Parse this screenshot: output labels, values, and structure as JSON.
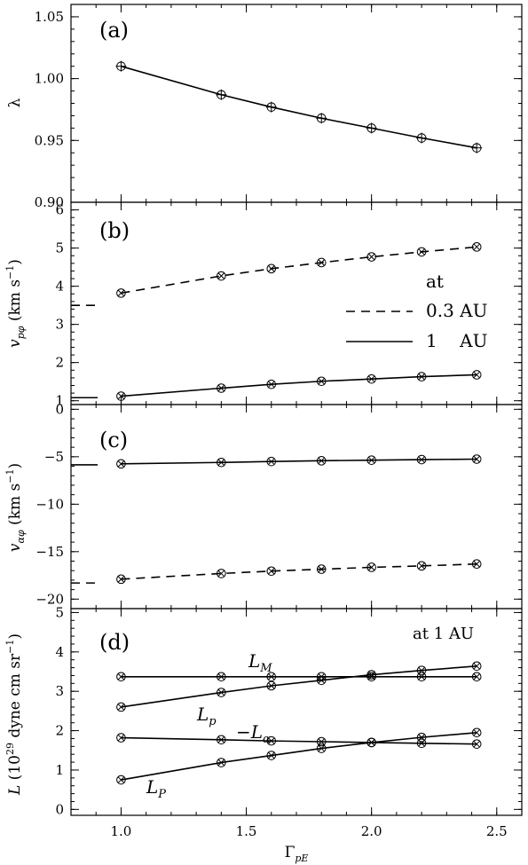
{
  "x_axis": {
    "label_main": "Γ",
    "label_sub": "pE",
    "ticks": [
      1.0,
      1.5,
      2.0,
      2.5
    ],
    "tick_labels": [
      "1.0",
      "1.5",
      "2.0",
      "2.5"
    ],
    "range": [
      0.8,
      2.6
    ]
  },
  "chart_data": [
    {
      "type": "line",
      "panel_label": "(a)",
      "ylabel": "λ",
      "ylim": [
        0.9,
        1.06
      ],
      "yticks": [
        0.9,
        0.95,
        1.0,
        1.05
      ],
      "ytick_labels": [
        "0.90",
        "0.95",
        "1.00",
        "1.05"
      ],
      "x": [
        1.0,
        1.4,
        1.6,
        1.8,
        2.0,
        2.2,
        2.42
      ],
      "series": [
        {
          "y": [
            1.01,
            0.987,
            0.977,
            0.968,
            0.96,
            0.952,
            0.944
          ],
          "dash": false,
          "marker": "circle-plus"
        }
      ]
    },
    {
      "type": "line",
      "panel_label": "(b)",
      "ylabel": "v_pφ (km s⁻¹)",
      "ylim": [
        0.9,
        6.2
      ],
      "yticks": [
        1,
        2,
        3,
        4,
        5,
        6
      ],
      "ytick_labels": [
        "1",
        "2",
        "3",
        "4",
        "5",
        "6"
      ],
      "x": [
        1.0,
        1.4,
        1.6,
        1.8,
        2.0,
        2.2,
        2.42
      ],
      "series": [
        {
          "name": "0.3 AU",
          "y": [
            3.82,
            4.27,
            4.46,
            4.62,
            4.77,
            4.9,
            5.03
          ],
          "dash": true,
          "marker": "circle-x",
          "ref_value": 3.5
        },
        {
          "name": "1 AU",
          "y": [
            1.12,
            1.33,
            1.43,
            1.51,
            1.57,
            1.63,
            1.68
          ],
          "dash": false,
          "marker": "circle-x",
          "ref_value": 1.08
        }
      ],
      "legend": {
        "title": "at",
        "entries": [
          "0.3 AU",
          "1    AU"
        ]
      }
    },
    {
      "type": "line",
      "panel_label": "(c)",
      "ylabel": "v_αφ (km s⁻¹)",
      "ylim": [
        -21,
        0.5
      ],
      "yticks": [
        0,
        -5,
        -10,
        -15,
        -20
      ],
      "ytick_labels": [
        "0",
        "−5",
        "−10",
        "−15",
        "−20"
      ],
      "x": [
        1.0,
        1.4,
        1.6,
        1.8,
        2.0,
        2.2,
        2.42
      ],
      "series": [
        {
          "y": [
            -5.75,
            -5.6,
            -5.5,
            -5.42,
            -5.36,
            -5.3,
            -5.25
          ],
          "dash": false,
          "marker": "circle-x",
          "ref_value": -5.85
        },
        {
          "y": [
            -17.9,
            -17.3,
            -17.05,
            -16.85,
            -16.65,
            -16.5,
            -16.3
          ],
          "dash": true,
          "marker": "circle-x",
          "ref_value": -18.3
        }
      ]
    },
    {
      "type": "line",
      "panel_label": "(d)",
      "ylabel": "L (10²⁹ dyne cm sr⁻¹)",
      "ylim": [
        -0.15,
        5.1
      ],
      "yticks": [
        0,
        1,
        2,
        3,
        4,
        5
      ],
      "ytick_labels": [
        "0",
        "1",
        "2",
        "3",
        "4",
        "5"
      ],
      "x": [
        1.0,
        1.4,
        1.6,
        1.8,
        2.0,
        2.2,
        2.42
      ],
      "annotation": "at 1 AU",
      "series": [
        {
          "name": "L_M",
          "y": [
            3.37,
            3.37,
            3.37,
            3.37,
            3.37,
            3.37,
            3.37
          ],
          "dash": false,
          "marker": "circle-x"
        },
        {
          "name": "L_p",
          "y": [
            2.6,
            2.97,
            3.14,
            3.28,
            3.42,
            3.53,
            3.64
          ],
          "dash": false,
          "marker": "circle-x"
        },
        {
          "name": "−L_α",
          "y": [
            1.82,
            1.77,
            1.74,
            1.72,
            1.7,
            1.68,
            1.66
          ],
          "dash": false,
          "marker": "circle-x"
        },
        {
          "name": "L_P",
          "y": [
            0.75,
            1.19,
            1.37,
            1.55,
            1.7,
            1.83,
            1.95
          ],
          "dash": false,
          "marker": "circle-x"
        }
      ],
      "curve_labels": [
        {
          "main": "L",
          "sub": "M"
        },
        {
          "main": "L",
          "sub": "p"
        },
        {
          "main": "−L",
          "sub": "α"
        },
        {
          "main": "L",
          "sub": "P"
        }
      ]
    }
  ]
}
